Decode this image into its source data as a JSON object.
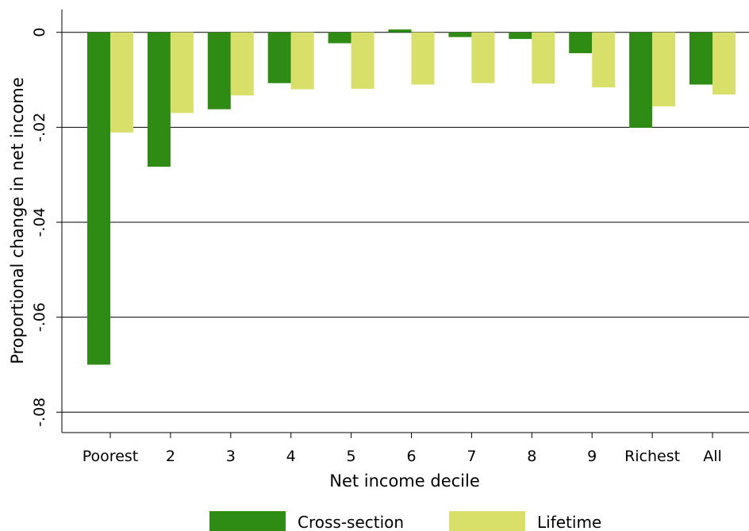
{
  "chart_data": {
    "type": "bar",
    "title": "",
    "xlabel": "Net income decile",
    "ylabel": "Proportional change in net income",
    "categories": [
      "Poorest",
      "2",
      "3",
      "4",
      "5",
      "6",
      "7",
      "8",
      "9",
      "Richest",
      "All"
    ],
    "yticks": [
      {
        "value": 0,
        "label": "0"
      },
      {
        "value": -0.02,
        "label": "-.02"
      },
      {
        "value": -0.04,
        "label": "-.04"
      },
      {
        "value": -0.06,
        "label": "-.06"
      },
      {
        "value": -0.08,
        "label": "-.08"
      }
    ],
    "ylim": [
      -0.0843,
      0.0048
    ],
    "grid": true,
    "legend_position": "bottom",
    "series": [
      {
        "name": "Cross-section",
        "color": "#2e8b14",
        "values": [
          -0.07,
          -0.0283,
          -0.0162,
          -0.0107,
          -0.0023,
          0.0006,
          -0.001,
          -0.0014,
          -0.0044,
          -0.0201,
          -0.011
        ]
      },
      {
        "name": "Lifetime",
        "color": "#d9e06a",
        "values": [
          -0.0211,
          -0.017,
          -0.0133,
          -0.012,
          -0.0119,
          -0.011,
          -0.0107,
          -0.0108,
          -0.0116,
          -0.0156,
          -0.0131
        ]
      }
    ]
  }
}
